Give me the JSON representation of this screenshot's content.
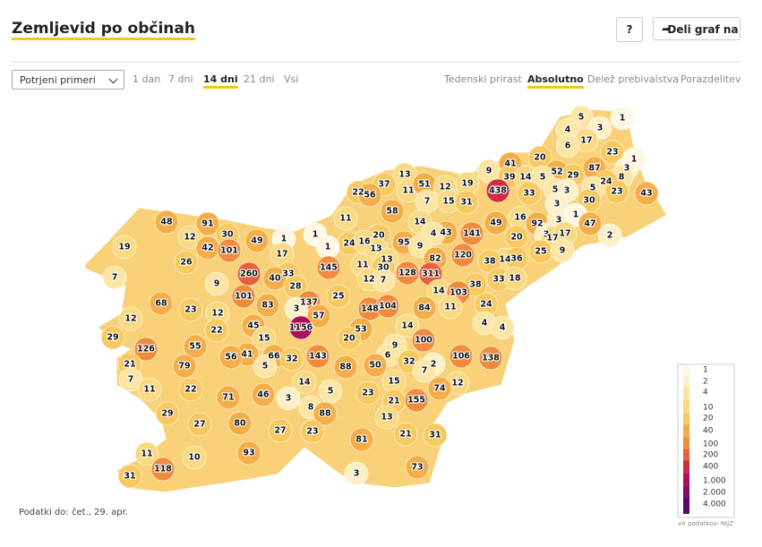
{
  "header": {
    "title": "Zemljevid po občinah",
    "help": "?",
    "share": "Deli graf na"
  },
  "controls": {
    "select": "Potrjeni primeri",
    "time_tabs": {
      "items": [
        "1 dan",
        "7 dni",
        "14 dni",
        "21 dni",
        "Vsi"
      ],
      "active": 2
    },
    "view_tabs": {
      "items": [
        "Tedenski prirast",
        "Absolutno",
        "Delež prebivalstva",
        "Porazdelitev"
      ],
      "active": 1
    }
  },
  "map": {
    "values": [
      5,
      1,
      4,
      3,
      17,
      6,
      23,
      20,
      41,
      52,
      87,
      3,
      1,
      9,
      39,
      14,
      5,
      29,
      8,
      24,
      5,
      3,
      5,
      43,
      23,
      13,
      37,
      11,
      51,
      12,
      19,
      22,
      56,
      438,
      33,
      30,
      3,
      7,
      15,
      31,
      58,
      11,
      14,
      16,
      92,
      3,
      1,
      49,
      47,
      3,
      17,
      17,
      2,
      43,
      141,
      20,
      4,
      1,
      48,
      91,
      30,
      49,
      12,
      42,
      101,
      1,
      20,
      24,
      16,
      1,
      13,
      95,
      9,
      19,
      26,
      17,
      25,
      9,
      14,
      36,
      38,
      120,
      82,
      13,
      11,
      145,
      30,
      128,
      311,
      260,
      33,
      7,
      9,
      40,
      28,
      12,
      7,
      38,
      33,
      18,
      14,
      103,
      25,
      101,
      137,
      68,
      23,
      83,
      3,
      148,
      104,
      84,
      11,
      24,
      12,
      57,
      12,
      4,
      4,
      45,
      22,
      1156,
      53,
      14,
      29,
      15,
      20,
      100,
      126,
      55,
      41,
      9,
      56,
      66,
      32,
      143,
      6,
      106,
      138,
      21,
      79,
      5,
      88,
      50,
      32,
      2,
      7,
      7,
      14,
      15,
      12,
      11,
      22,
      5,
      74,
      71,
      46,
      3,
      23,
      21,
      155,
      8,
      88,
      29,
      13,
      27,
      80,
      27,
      23,
      21,
      31,
      81,
      93,
      11,
      10,
      73,
      118,
      31,
      3
    ]
  },
  "legend": {
    "ticks": [
      1,
      2,
      4,
      10,
      20,
      40,
      100,
      200,
      400,
      {
        "value": 1000,
        "label": "1.000"
      },
      {
        "value": 2000,
        "label": "2.000"
      },
      {
        "value": 4000,
        "label": "4.000"
      }
    ],
    "colors": [
      "#fdf7e4",
      "#fcf0c8",
      "#fbe6a6",
      "#f9da80",
      "#f8c95e",
      "#f5ae47",
      "#f08b3e",
      "#e5603b",
      "#d02c47",
      "#ad105b",
      "#860a67",
      "#560a6e"
    ]
  },
  "footer": {
    "updated": "Podatki do: čet., 29. apr.",
    "source": "vir podatkov: NIJZ"
  }
}
